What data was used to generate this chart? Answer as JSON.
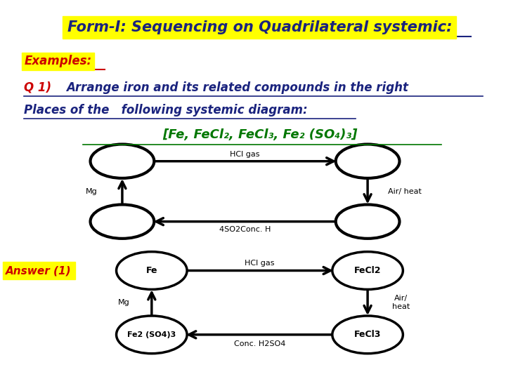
{
  "title": "Form-I: Sequencing on Quadrilateral systemic:",
  "title_bg": "#ffff00",
  "title_color": "#1a237e",
  "title_fontsize": 15,
  "examples_label": "Examples:",
  "examples_bg": "#ffff00",
  "examples_color": "#cc0000",
  "q1_q_color": "#cc0000",
  "q1_text_color": "#1a237e",
  "compounds_text": "[Fe, FeCl₂, FeCl₃, Fe₂ (SO₄)₃]",
  "compounds_color": "#007700",
  "answer_label": "Answer (1)",
  "answer_bg": "#ffff00",
  "answer_color": "#cc0000",
  "bg_color": "#ffffff"
}
